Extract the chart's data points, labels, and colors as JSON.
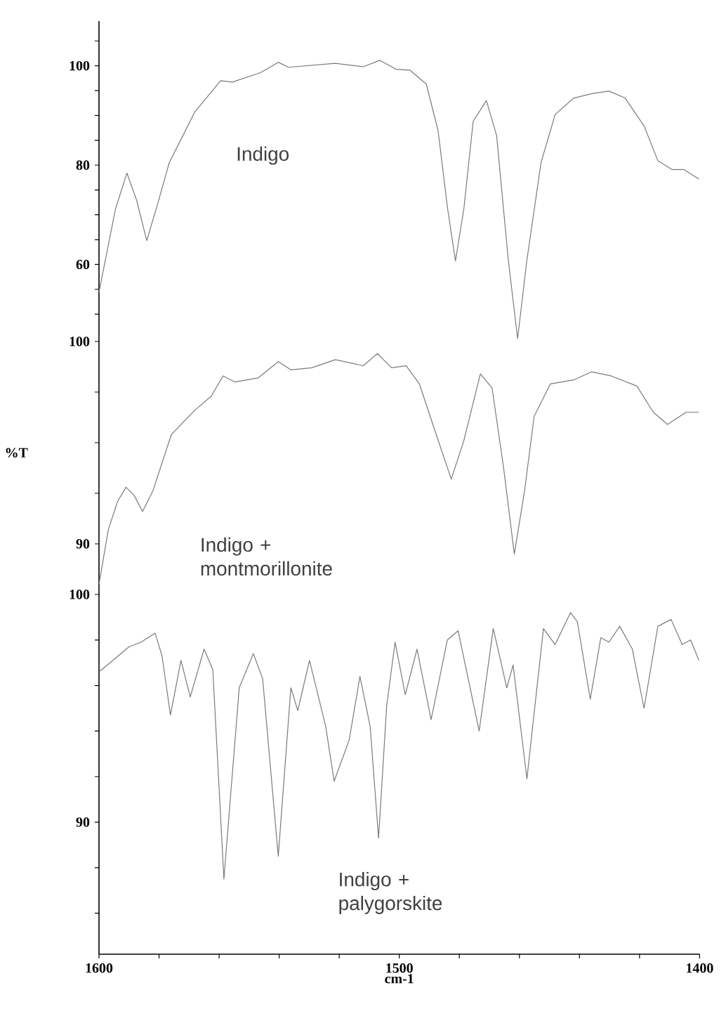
{
  "chart_data": [
    {
      "type": "line",
      "xlim": [
        1600,
        1400
      ],
      "ylim": [
        44.5,
        109
      ],
      "yticks": [
        {
          "value": 50,
          "label": null
        },
        {
          "value": 55,
          "label": null
        },
        60,
        {
          "value": 65,
          "label": null
        },
        {
          "value": 70,
          "label": null
        },
        {
          "value": 75,
          "label": null
        },
        80,
        {
          "value": 85,
          "label": null
        },
        {
          "value": 90,
          "label": null
        },
        {
          "value": 95,
          "label": null
        },
        100,
        {
          "value": 105,
          "label": null
        }
      ],
      "tick_labels": "y",
      "series": [
        {
          "name": "Indigo",
          "color": "#7a7a7a",
          "x": [
            1600,
            1594.5,
            1590.7,
            1587.5,
            1584.1,
            1580.5,
            1576.6,
            1568.1,
            1559.5,
            1555.6,
            1546.3,
            1540.3,
            1536.9,
            1521.3,
            1512.0,
            1506.5,
            1501.1,
            1496.4,
            1491.0,
            1487.1,
            1483.9,
            1481.3,
            1478.5,
            1475.4,
            1471.0,
            1467.6,
            1463.7,
            1460.6,
            1457.5,
            1452.8,
            1448.1,
            1441.9,
            1435.7,
            1430.2,
            1424.8,
            1418.5,
            1413.9,
            1409.2,
            1405.3,
            1400.2
          ],
          "values": [
            54.4,
            71.2,
            78.4,
            73.0,
            64.8,
            72.1,
            80.5,
            90.7,
            97.0,
            96.7,
            98.6,
            100.7,
            99.7,
            100.5,
            99.8,
            101.1,
            99.3,
            99.1,
            96.3,
            87.0,
            71.2,
            60.7,
            71.2,
            88.8,
            93.0,
            86.0,
            60.9,
            45.1,
            60.9,
            80.5,
            90.2,
            93.5,
            94.4,
            94.9,
            93.5,
            87.9,
            80.9,
            79.1,
            79.1,
            77.2
          ]
        }
      ]
    },
    {
      "type": "line",
      "xlim": [
        1600,
        1400
      ],
      "ylim": [
        87.5,
        100
      ],
      "ylabel": "%T",
      "yticks": [
        90,
        {
          "value": 92.5,
          "label": null
        },
        {
          "value": 95,
          "label": null
        },
        {
          "value": 97.5,
          "label": null
        },
        100
      ],
      "tick_labels": "y",
      "series": [
        {
          "name": "Indigo + montmorillonite",
          "color": "#7a7a7a",
          "x": [
            1600,
            1596.9,
            1593.8,
            1591.0,
            1588.3,
            1585.5,
            1582.1,
            1575.9,
            1568.1,
            1562.6,
            1558.7,
            1554.8,
            1547.0,
            1540.3,
            1536.1,
            1529.1,
            1521.3,
            1512.0,
            1507.3,
            1502.6,
            1497.7,
            1493.3,
            1488.6,
            1482.7,
            1478.5,
            1473.0,
            1469.1,
            1465.3,
            1461.7,
            1458.3,
            1455.1,
            1449.7,
            1441.9,
            1436.0,
            1429.5,
            1420.9,
            1415.4,
            1410.7,
            1404.5,
            1400.2
          ],
          "values": [
            88.0,
            90.7,
            92.1,
            92.8,
            92.4,
            91.6,
            92.6,
            95.4,
            96.6,
            97.3,
            98.3,
            98.0,
            98.2,
            99.0,
            98.6,
            98.7,
            99.1,
            98.8,
            99.4,
            98.7,
            98.8,
            97.9,
            95.8,
            93.2,
            95.1,
            98.4,
            97.7,
            93.8,
            89.5,
            92.6,
            96.3,
            97.9,
            98.1,
            98.5,
            98.3,
            97.8,
            96.5,
            95.9,
            96.5,
            96.5
          ]
        }
      ]
    },
    {
      "type": "line",
      "xlim": [
        1600,
        1400
      ],
      "ylim": [
        84.2,
        100
      ],
      "xlabel": "cm-1",
      "xticks": [
        1600,
        {
          "value": 1580,
          "label": null
        },
        {
          "value": 1560,
          "label": null
        },
        {
          "value": 1540,
          "label": null
        },
        {
          "value": 1520,
          "label": null
        },
        1500,
        {
          "value": 1480,
          "label": null
        },
        {
          "value": 1460,
          "label": null
        },
        {
          "value": 1440,
          "label": null
        },
        {
          "value": 1420,
          "label": null
        },
        1400
      ],
      "yticks": [
        {
          "value": 86,
          "label": null
        },
        {
          "value": 88,
          "label": null
        },
        90,
        {
          "value": 92,
          "label": null
        },
        {
          "value": 94,
          "label": null
        },
        {
          "value": 96,
          "label": null
        },
        {
          "value": 98,
          "label": null
        },
        100
      ],
      "series": [
        {
          "name": "Indigo + palygorskite",
          "color": "#7a7a7a",
          "x": [
            1600,
            1594.5,
            1590.0,
            1586.0,
            1581.3,
            1579.0,
            1576.2,
            1572.7,
            1569.6,
            1565.0,
            1562.1,
            1558.4,
            1553.3,
            1548.6,
            1545.5,
            1540.3,
            1536.1,
            1533.8,
            1529.9,
            1524.5,
            1521.7,
            1516.7,
            1513.1,
            1509.7,
            1506.9,
            1504.2,
            1501.4,
            1498.0,
            1494.1,
            1489.4,
            1484.0,
            1480.4,
            1473.4,
            1468.7,
            1464.2,
            1462.1,
            1457.5,
            1452.0,
            1448.1,
            1443.0,
            1440.7,
            1436.4,
            1432.9,
            1430.2,
            1426.6,
            1422.4,
            1418.5,
            1413.9,
            1409.5,
            1405.8,
            1403.0,
            1400.2
          ],
          "values": [
            96.6,
            97.2,
            97.7,
            97.9,
            98.3,
            97.3,
            94.7,
            97.1,
            95.5,
            97.6,
            96.7,
            87.5,
            95.9,
            97.4,
            96.3,
            88.5,
            95.9,
            94.9,
            97.1,
            94.2,
            91.8,
            93.6,
            96.4,
            94.2,
            89.3,
            95.1,
            97.9,
            95.6,
            97.6,
            94.5,
            98.0,
            98.4,
            94.0,
            98.5,
            95.9,
            96.9,
            91.9,
            98.5,
            97.8,
            99.2,
            98.8,
            95.4,
            98.1,
            97.9,
            98.6,
            97.6,
            95.0,
            98.6,
            98.9,
            97.8,
            98.0,
            97.1
          ]
        }
      ]
    }
  ]
}
